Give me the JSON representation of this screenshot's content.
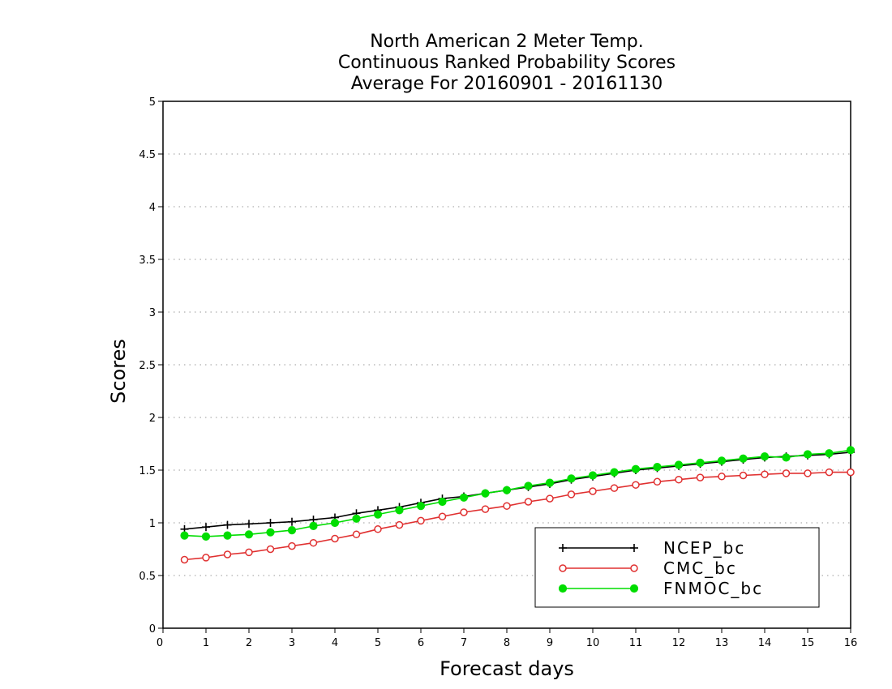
{
  "chart_data": {
    "type": "line",
    "title_lines": [
      "North American 2 Meter Temp.",
      "Continuous Ranked Probability Scores",
      "Average For 20160901 - 20161130"
    ],
    "xlabel": "Forecast days",
    "ylabel": "Scores",
    "xlim": [
      0,
      16
    ],
    "ylim": [
      0,
      5
    ],
    "xticks": [
      0,
      1,
      2,
      3,
      4,
      5,
      6,
      7,
      8,
      9,
      10,
      11,
      12,
      13,
      14,
      15,
      16
    ],
    "yticks": [
      0,
      0.5,
      1,
      1.5,
      2,
      2.5,
      3,
      3.5,
      4,
      4.5,
      5
    ],
    "grid": "horizontal dotted",
    "legend": "bottom-right",
    "x": [
      0.5,
      1,
      1.5,
      2,
      2.5,
      3,
      3.5,
      4,
      4.5,
      5,
      5.5,
      6,
      6.5,
      7,
      7.5,
      8,
      8.5,
      9,
      9.5,
      10,
      10.5,
      11,
      11.5,
      12,
      12.5,
      13,
      13.5,
      14,
      14.5,
      15,
      15.5,
      16
    ],
    "series": [
      {
        "name": "NCEP_bc",
        "color": "#000000",
        "marker": "plus",
        "values": [
          0.94,
          0.96,
          0.98,
          0.99,
          1.0,
          1.01,
          1.03,
          1.05,
          1.09,
          1.12,
          1.15,
          1.19,
          1.23,
          1.25,
          1.28,
          1.31,
          1.34,
          1.37,
          1.41,
          1.44,
          1.47,
          1.5,
          1.52,
          1.54,
          1.56,
          1.58,
          1.6,
          1.62,
          1.63,
          1.64,
          1.65,
          1.67
        ]
      },
      {
        "name": "CMC_bc",
        "color": "#e03030",
        "marker": "open-circle",
        "values": [
          0.65,
          0.67,
          0.7,
          0.72,
          0.75,
          0.78,
          0.81,
          0.85,
          0.89,
          0.94,
          0.98,
          1.02,
          1.06,
          1.1,
          1.13,
          1.16,
          1.2,
          1.23,
          1.27,
          1.3,
          1.33,
          1.36,
          1.39,
          1.41,
          1.43,
          1.44,
          1.45,
          1.46,
          1.47,
          1.47,
          1.48,
          1.48
        ]
      },
      {
        "name": "FNMOC_bc",
        "color": "#00dd00",
        "marker": "filled-circle",
        "values": [
          0.88,
          0.87,
          0.88,
          0.89,
          0.91,
          0.93,
          0.97,
          1.0,
          1.04,
          1.08,
          1.12,
          1.16,
          1.2,
          1.24,
          1.28,
          1.31,
          1.35,
          1.38,
          1.42,
          1.45,
          1.48,
          1.51,
          1.53,
          1.55,
          1.57,
          1.59,
          1.61,
          1.63,
          1.62,
          1.65,
          1.66,
          1.69
        ]
      }
    ]
  }
}
